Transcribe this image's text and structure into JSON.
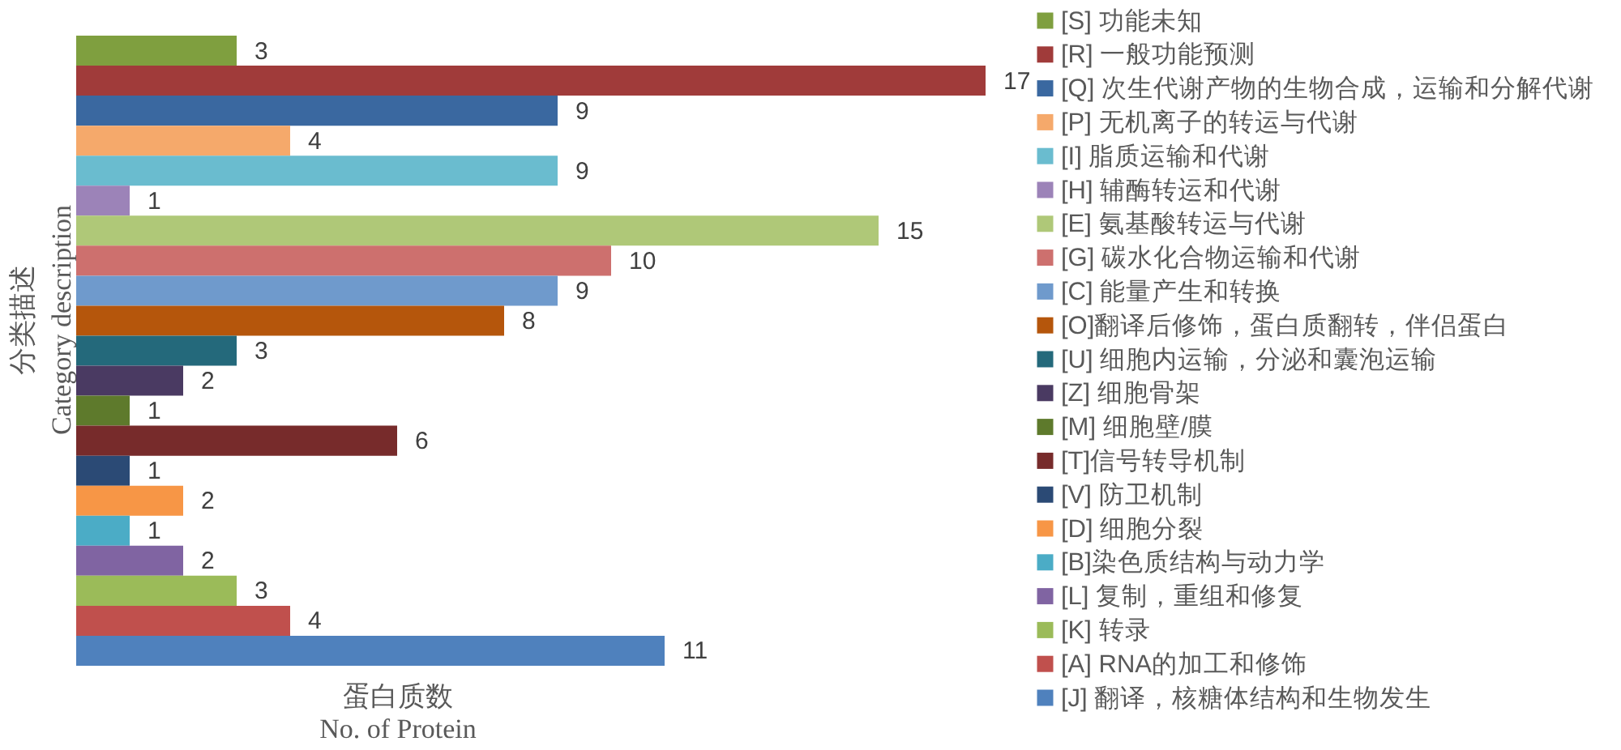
{
  "chart_data": {
    "type": "bar",
    "orientation": "horizontal",
    "stacked": true,
    "categories": [
      null,
      null,
      null,
      null,
      null,
      null,
      null,
      null,
      null,
      null,
      null,
      null,
      null,
      null,
      null,
      null,
      null,
      null,
      null,
      null,
      null
    ],
    "series": [
      {
        "name": "[S] 功能未知",
        "color": "#7f9f3f",
        "values": [
          3,
          null,
          null,
          null,
          null,
          null,
          null,
          null,
          null,
          null,
          null,
          null,
          null,
          null,
          null,
          null,
          null,
          null,
          null,
          null,
          null
        ]
      },
      {
        "name": "[R] 一般功能预测",
        "color": "#a03b3a",
        "values": [
          null,
          17,
          null,
          null,
          null,
          null,
          null,
          null,
          null,
          null,
          null,
          null,
          null,
          null,
          null,
          null,
          null,
          null,
          null,
          null,
          null
        ]
      },
      {
        "name": "[Q] 次生代谢产物的生物合成，运输和分解代谢",
        "color": "#3a68a0",
        "values": [
          null,
          null,
          9,
          null,
          null,
          null,
          null,
          null,
          null,
          null,
          null,
          null,
          null,
          null,
          null,
          null,
          null,
          null,
          null,
          null,
          null
        ]
      },
      {
        "name": "[P] 无机离子的转运与代谢",
        "color": "#f5a96b",
        "values": [
          null,
          null,
          null,
          4,
          null,
          null,
          null,
          null,
          null,
          null,
          null,
          null,
          null,
          null,
          null,
          null,
          null,
          null,
          null,
          null,
          null
        ]
      },
      {
        "name": "[I] 脂质运输和代谢",
        "color": "#6abccf",
        "values": [
          null,
          null,
          null,
          null,
          9,
          null,
          null,
          null,
          null,
          null,
          null,
          null,
          null,
          null,
          null,
          null,
          null,
          null,
          null,
          null,
          null
        ]
      },
      {
        "name": "[H] 辅酶转运和代谢",
        "color": "#9c83b8",
        "values": [
          null,
          null,
          null,
          null,
          null,
          1,
          null,
          null,
          null,
          null,
          null,
          null,
          null,
          null,
          null,
          null,
          null,
          null,
          null,
          null,
          null
        ]
      },
      {
        "name": "[E] 氨基酸转运与代谢",
        "color": "#afc878",
        "values": [
          null,
          null,
          null,
          null,
          null,
          null,
          15,
          null,
          null,
          null,
          null,
          null,
          null,
          null,
          null,
          null,
          null,
          null,
          null,
          null,
          null
        ]
      },
      {
        "name": "[G] 碳水化合物运输和代谢",
        "color": "#cd706e",
        "values": [
          null,
          null,
          null,
          null,
          null,
          null,
          null,
          10,
          null,
          null,
          null,
          null,
          null,
          null,
          null,
          null,
          null,
          null,
          null,
          null,
          null
        ]
      },
      {
        "name": "[C] 能量产生和转换",
        "color": "#6f9acc",
        "values": [
          null,
          null,
          null,
          null,
          null,
          null,
          null,
          null,
          9,
          null,
          null,
          null,
          null,
          null,
          null,
          null,
          null,
          null,
          null,
          null,
          null
        ]
      },
      {
        "name": "[O]翻译后修饰，蛋白质翻转，伴侣蛋白",
        "color": "#b5560c",
        "values": [
          null,
          null,
          null,
          null,
          null,
          null,
          null,
          null,
          null,
          8,
          null,
          null,
          null,
          null,
          null,
          null,
          null,
          null,
          null,
          null,
          null
        ]
      },
      {
        "name": "[U] 细胞内运输，分泌和囊泡运输",
        "color": "#24697b",
        "values": [
          null,
          null,
          null,
          null,
          null,
          null,
          null,
          null,
          null,
          null,
          3,
          null,
          null,
          null,
          null,
          null,
          null,
          null,
          null,
          null,
          null
        ]
      },
      {
        "name": "[Z] 细胞骨架",
        "color": "#4a3a62",
        "values": [
          null,
          null,
          null,
          null,
          null,
          null,
          null,
          null,
          null,
          null,
          null,
          2,
          null,
          null,
          null,
          null,
          null,
          null,
          null,
          null,
          null
        ]
      },
      {
        "name": "[M] 细胞壁/膜",
        "color": "#5e7a2c",
        "values": [
          null,
          null,
          null,
          null,
          null,
          null,
          null,
          null,
          null,
          null,
          null,
          null,
          1,
          null,
          null,
          null,
          null,
          null,
          null,
          null,
          null
        ]
      },
      {
        "name": "[T]信号转导机制",
        "color": "#772b2b",
        "values": [
          null,
          null,
          null,
          null,
          null,
          null,
          null,
          null,
          null,
          null,
          null,
          null,
          null,
          6,
          null,
          null,
          null,
          null,
          null,
          null,
          null
        ]
      },
      {
        "name": "[V] 防卫机制",
        "color": "#2b4a75",
        "values": [
          null,
          null,
          null,
          null,
          null,
          null,
          null,
          null,
          null,
          null,
          null,
          null,
          null,
          null,
          1,
          null,
          null,
          null,
          null,
          null,
          null
        ]
      },
      {
        "name": "[D] 细胞分裂",
        "color": "#f79646",
        "values": [
          null,
          null,
          null,
          null,
          null,
          null,
          null,
          null,
          null,
          null,
          null,
          null,
          null,
          null,
          null,
          2,
          null,
          null,
          null,
          null,
          null
        ]
      },
      {
        "name": "[B]染色质结构与动力学",
        "color": "#4bacc6",
        "values": [
          null,
          null,
          null,
          null,
          null,
          null,
          null,
          null,
          null,
          null,
          null,
          null,
          null,
          null,
          null,
          null,
          1,
          null,
          null,
          null,
          null
        ]
      },
      {
        "name": "[L] 复制，重组和修复",
        "color": "#8064a2",
        "values": [
          null,
          null,
          null,
          null,
          null,
          null,
          null,
          null,
          null,
          null,
          null,
          null,
          null,
          null,
          null,
          null,
          null,
          2,
          null,
          null,
          null
        ]
      },
      {
        "name": "[K] 转录",
        "color": "#9bbb59",
        "values": [
          null,
          null,
          null,
          null,
          null,
          null,
          null,
          null,
          null,
          null,
          null,
          null,
          null,
          null,
          null,
          null,
          null,
          null,
          3,
          null,
          null
        ]
      },
      {
        "name": "[A] RNA的加工和修饰",
        "color": "#c0504d",
        "values": [
          null,
          null,
          null,
          null,
          null,
          null,
          null,
          null,
          null,
          null,
          null,
          null,
          null,
          null,
          null,
          null,
          null,
          null,
          null,
          4,
          null
        ]
      },
      {
        "name": "[J] 翻译，核糖体结构和生物发生",
        "color": "#4f81bd",
        "values": [
          null,
          null,
          null,
          null,
          null,
          null,
          null,
          null,
          null,
          null,
          null,
          null,
          null,
          null,
          null,
          null,
          null,
          null,
          null,
          null,
          11
        ]
      }
    ],
    "xlabel": "蛋白质数\nNo. of Protein",
    "ylabel": "分类描述\nCategory description",
    "data_labels": true,
    "legend": "right"
  }
}
